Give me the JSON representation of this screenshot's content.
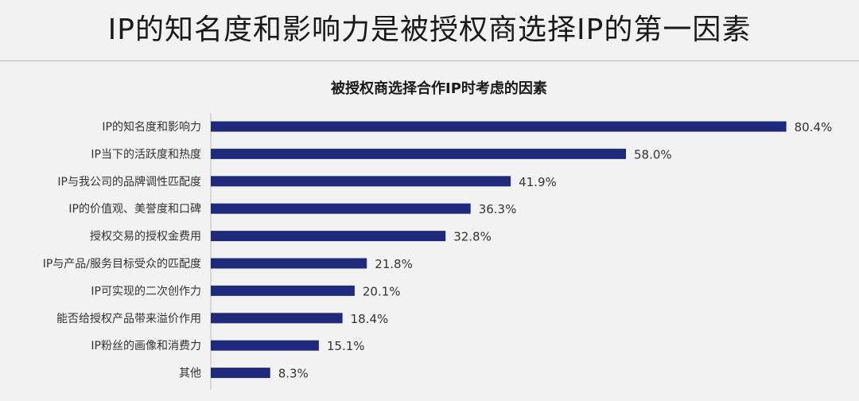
{
  "page": {
    "title": "IP的知名度和影响力是被授权商选择IP的第一因素"
  },
  "colors": {
    "bar": "#1f2a7a",
    "axis": "#bfbfbf",
    "background": "#f2f2f2"
  },
  "chart_data": {
    "type": "bar",
    "orientation": "horizontal",
    "title": "被授权商选择合作IP时考虑的因素",
    "xlabel": "",
    "ylabel": "",
    "xlim": [
      0,
      100
    ],
    "grid": false,
    "legend": "none",
    "categories": [
      "IP的知名度和影响力",
      "IP当下的活跃度和热度",
      "IP与我公司的品牌调性匹配度",
      "IP的价值观、美誉度和口碑",
      "授权交易的授权金费用",
      "IP与产品/服务目标受众的匹配度",
      "IP可实现的二次创作力",
      "能否给授权产品带来溢价作用",
      "IP粉丝的画像和消费力",
      "其他"
    ],
    "values": [
      80.4,
      58.0,
      41.9,
      36.3,
      32.8,
      21.8,
      20.1,
      18.4,
      15.1,
      8.3
    ],
    "value_labels": [
      "80.4%",
      "58.0%",
      "41.9%",
      "36.3%",
      "32.8%",
      "21.8%",
      "20.1%",
      "18.4%",
      "15.1%",
      "8.3%"
    ]
  }
}
